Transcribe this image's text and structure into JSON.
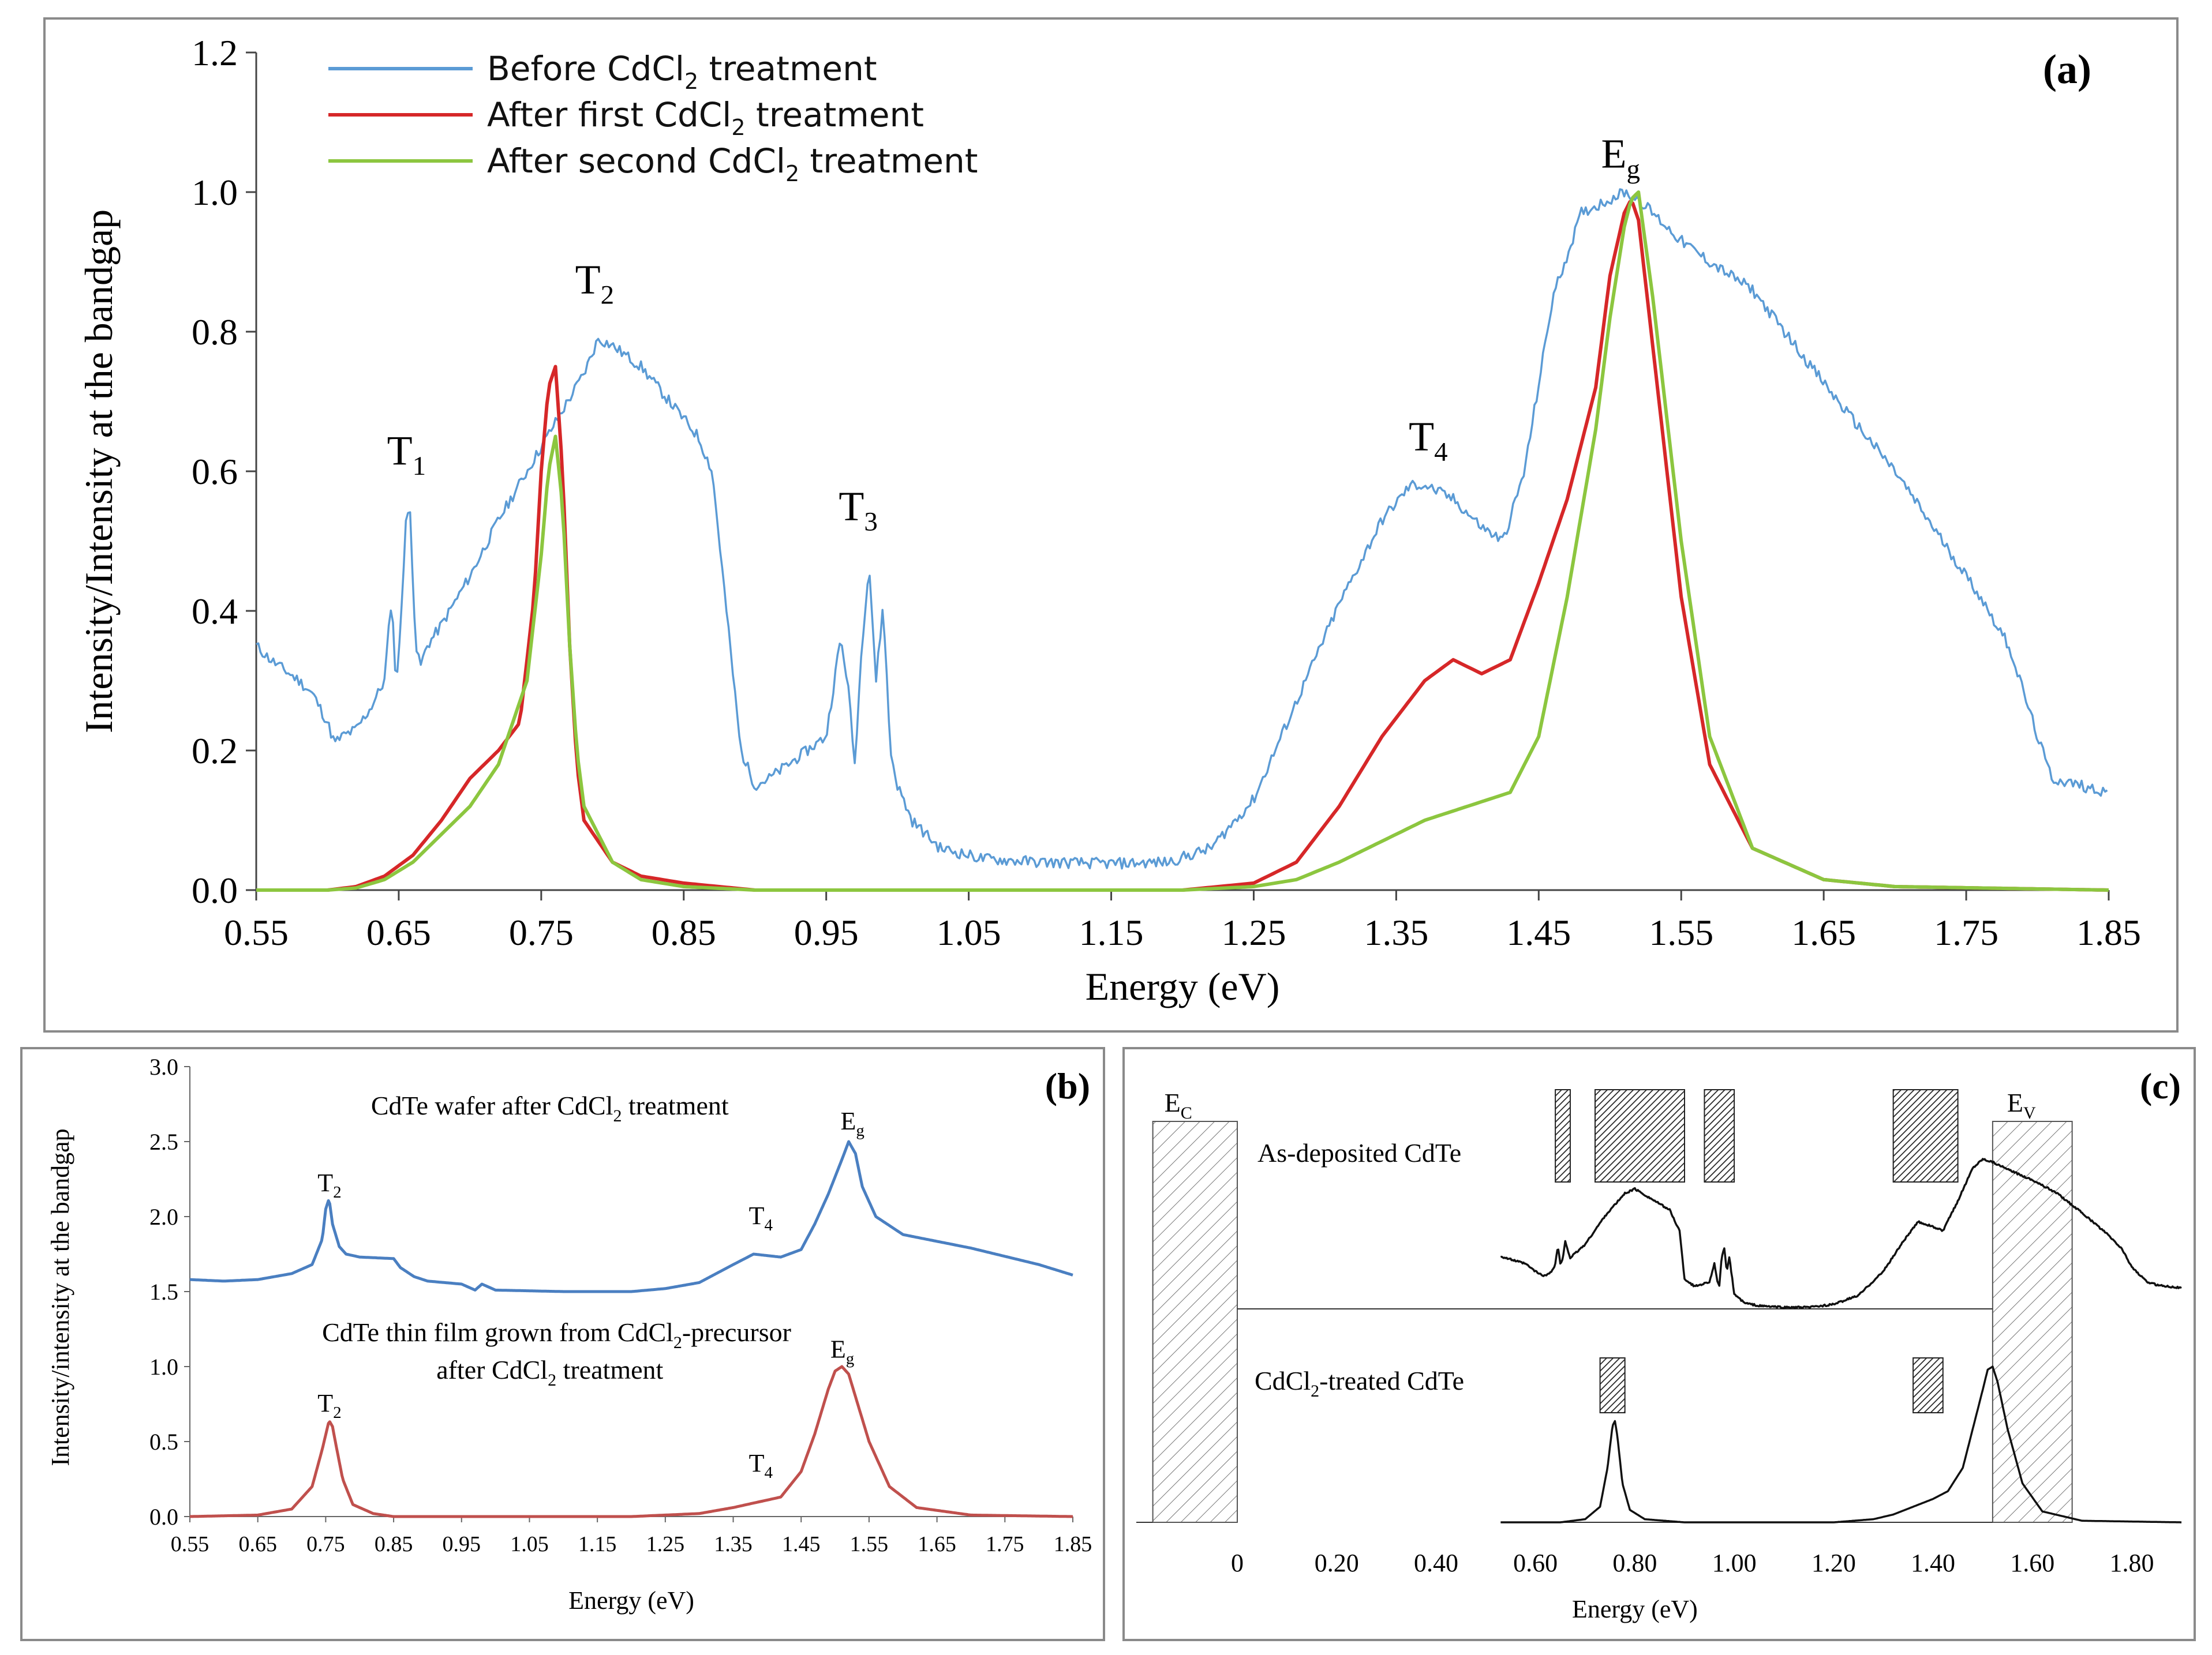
{
  "chart_data": [
    {
      "id": "a",
      "type": "line",
      "panel_label": "(a)",
      "xlabel": "Energy (eV)",
      "ylabel": "Intensity/Intensity at the bandgap",
      "xlim": [
        0.55,
        1.85
      ],
      "ylim": [
        0,
        1.2
      ],
      "xticks": [
        "0.55",
        "0.65",
        "0.75",
        "0.85",
        "0.95",
        "1.05",
        "1.15",
        "1.25",
        "1.35",
        "1.45",
        "1.55",
        "1.65",
        "1.75",
        "1.85"
      ],
      "yticks": [
        "0.0",
        "0.2",
        "0.4",
        "0.6",
        "0.8",
        "1.0",
        "1.2"
      ],
      "legend": [
        {
          "pre": "Before CdCl",
          "sub": "2",
          "post": " treatment",
          "color": "#5b9bd5"
        },
        {
          "pre": "After first CdCl",
          "sub": "2",
          "post": " treatment",
          "color": "#d62728"
        },
        {
          "pre": "After second CdCl",
          "sub": "2",
          "post": " treatment",
          "color": "#8cc63f"
        }
      ],
      "annotations": [
        {
          "main": "T",
          "sub": "1",
          "x": 0.658,
          "y": 0.61
        },
        {
          "main": "T",
          "sub": "2",
          "x": 0.79,
          "y": 0.855
        },
        {
          "main": "T",
          "sub": "3",
          "x": 0.975,
          "y": 0.53
        },
        {
          "main": "T",
          "sub": "4",
          "x": 1.375,
          "y": 0.63
        },
        {
          "main": "E",
          "sub": "g",
          "x": 1.51,
          "y": 1.035
        }
      ],
      "series": [
        {
          "name": "Before CdCl2 treatment",
          "color": "#5b9bd5",
          "noise": 0.008,
          "x": [
            0.55,
            0.56,
            0.58,
            0.59,
            0.6,
            0.605,
            0.61,
            0.62,
            0.63,
            0.64,
            0.645,
            0.648,
            0.65,
            0.655,
            0.658,
            0.662,
            0.665,
            0.67,
            0.68,
            0.7,
            0.72,
            0.74,
            0.76,
            0.78,
            0.79,
            0.8,
            0.82,
            0.84,
            0.86,
            0.87,
            0.88,
            0.89,
            0.9,
            0.91,
            0.93,
            0.95,
            0.96,
            0.965,
            0.97,
            0.975,
            0.98,
            0.985,
            0.99,
            0.995,
            1.0,
            1.01,
            1.03,
            1.06,
            1.1,
            1.15,
            1.19,
            1.22,
            1.25,
            1.28,
            1.31,
            1.34,
            1.36,
            1.37,
            1.39,
            1.41,
            1.425,
            1.44,
            1.46,
            1.48,
            1.5,
            1.51,
            1.52,
            1.53,
            1.55,
            1.57,
            1.6,
            1.63,
            1.66,
            1.7,
            1.73,
            1.76,
            1.78,
            1.8,
            1.81,
            1.83,
            1.85
          ],
          "y": [
            0.35,
            0.33,
            0.3,
            0.28,
            0.24,
            0.21,
            0.22,
            0.23,
            0.26,
            0.3,
            0.42,
            0.3,
            0.33,
            0.53,
            0.54,
            0.35,
            0.32,
            0.35,
            0.38,
            0.45,
            0.53,
            0.6,
            0.67,
            0.74,
            0.79,
            0.78,
            0.75,
            0.7,
            0.65,
            0.6,
            0.4,
            0.2,
            0.15,
            0.16,
            0.19,
            0.22,
            0.36,
            0.3,
            0.18,
            0.35,
            0.47,
            0.3,
            0.41,
            0.2,
            0.15,
            0.1,
            0.06,
            0.045,
            0.04,
            0.038,
            0.04,
            0.06,
            0.13,
            0.27,
            0.41,
            0.53,
            0.58,
            0.58,
            0.56,
            0.52,
            0.5,
            0.6,
            0.85,
            0.97,
            0.99,
            1.0,
            0.99,
            0.97,
            0.93,
            0.9,
            0.86,
            0.78,
            0.7,
            0.6,
            0.51,
            0.42,
            0.35,
            0.22,
            0.16,
            0.15,
            0.14
          ]
        },
        {
          "name": "After first CdCl2 treatment",
          "color": "#d62728",
          "noise": 0,
          "x": [
            0.55,
            0.6,
            0.62,
            0.64,
            0.66,
            0.68,
            0.7,
            0.72,
            0.735,
            0.745,
            0.75,
            0.755,
            0.76,
            0.765,
            0.77,
            0.775,
            0.78,
            0.8,
            0.82,
            0.85,
            0.9,
            1.0,
            1.2,
            1.25,
            1.28,
            1.31,
            1.34,
            1.37,
            1.39,
            1.41,
            1.43,
            1.45,
            1.47,
            1.49,
            1.5,
            1.51,
            1.515,
            1.52,
            1.53,
            1.55,
            1.57,
            1.6,
            1.65,
            1.7,
            1.85
          ],
          "y": [
            0.0,
            0.0,
            0.005,
            0.02,
            0.05,
            0.1,
            0.16,
            0.2,
            0.24,
            0.42,
            0.6,
            0.72,
            0.75,
            0.6,
            0.35,
            0.18,
            0.1,
            0.04,
            0.02,
            0.01,
            0.0,
            0.0,
            0.0,
            0.01,
            0.04,
            0.12,
            0.22,
            0.3,
            0.33,
            0.31,
            0.33,
            0.44,
            0.56,
            0.72,
            0.88,
            0.97,
            0.99,
            0.96,
            0.78,
            0.42,
            0.18,
            0.06,
            0.015,
            0.005,
            0.0
          ]
        },
        {
          "name": "After second CdCl2 treatment",
          "color": "#8cc63f",
          "noise": 0,
          "x": [
            0.55,
            0.6,
            0.62,
            0.64,
            0.66,
            0.68,
            0.7,
            0.72,
            0.74,
            0.75,
            0.755,
            0.76,
            0.765,
            0.77,
            0.775,
            0.78,
            0.8,
            0.82,
            0.85,
            0.9,
            1.0,
            1.2,
            1.25,
            1.28,
            1.31,
            1.34,
            1.37,
            1.4,
            1.43,
            1.45,
            1.47,
            1.49,
            1.5,
            1.51,
            1.515,
            1.52,
            1.53,
            1.55,
            1.57,
            1.6,
            1.65,
            1.7,
            1.85
          ],
          "y": [
            0.0,
            0.0,
            0.003,
            0.015,
            0.04,
            0.08,
            0.12,
            0.18,
            0.3,
            0.48,
            0.6,
            0.65,
            0.55,
            0.35,
            0.2,
            0.12,
            0.04,
            0.015,
            0.005,
            0.0,
            0.0,
            0.0,
            0.005,
            0.015,
            0.04,
            0.07,
            0.1,
            0.12,
            0.14,
            0.22,
            0.42,
            0.66,
            0.82,
            0.95,
            0.99,
            1.0,
            0.85,
            0.5,
            0.22,
            0.06,
            0.015,
            0.005,
            0.0
          ]
        }
      ]
    },
    {
      "id": "b",
      "type": "line",
      "panel_label": "(b)",
      "xlabel": "Energy (eV)",
      "ylabel": "Intensity/intensity at the bandgap",
      "xlim": [
        0.55,
        1.85
      ],
      "ylim": [
        0,
        3.0
      ],
      "xticks": [
        "0.55",
        "0.65",
        "0.75",
        "0.85",
        "0.95",
        "1.05",
        "1.15",
        "1.25",
        "1.35",
        "1.45",
        "1.55",
        "1.65",
        "1.75",
        "1.85"
      ],
      "yticks": [
        "0.0",
        "0.5",
        "1.0",
        "1.5",
        "2.0",
        "2.5",
        "3.0"
      ],
      "texts": [
        {
          "id": "wafer-caption",
          "pre": "CdTe wafer after CdCl",
          "sub": "2",
          "post": " treatment",
          "x": 1.08,
          "y": 2.68
        },
        {
          "id": "film-caption-1",
          "pre": "CdTe thin film grown from CdCl",
          "sub": "2",
          "post": "-precursor",
          "x": 1.09,
          "y": 1.17
        },
        {
          "id": "film-caption-2",
          "pre": "after CdCl",
          "sub": "2",
          "post": " treatment",
          "x": 1.08,
          "y": 0.92
        }
      ],
      "annotations": [
        {
          "main": "T",
          "sub": "2",
          "x": 0.755,
          "y": 2.17
        },
        {
          "main": "T",
          "sub": "4",
          "x": 1.39,
          "y": 1.95
        },
        {
          "main": "E",
          "sub": "g",
          "x": 1.525,
          "y": 2.58
        },
        {
          "main": "T",
          "sub": "2",
          "x": 0.755,
          "y": 0.7
        },
        {
          "main": "T",
          "sub": "4",
          "x": 1.39,
          "y": 0.3
        },
        {
          "main": "E",
          "sub": "g",
          "x": 1.51,
          "y": 1.06
        }
      ],
      "series": [
        {
          "name": "CdTe wafer after CdCl2 treatment",
          "color": "#4a7fc1",
          "noise": 0,
          "x": [
            0.55,
            0.6,
            0.65,
            0.7,
            0.73,
            0.745,
            0.75,
            0.755,
            0.76,
            0.77,
            0.78,
            0.8,
            0.85,
            0.86,
            0.88,
            0.9,
            0.95,
            0.97,
            0.98,
            1.0,
            1.1,
            1.2,
            1.25,
            1.3,
            1.35,
            1.38,
            1.42,
            1.45,
            1.47,
            1.49,
            1.51,
            1.52,
            1.53,
            1.54,
            1.56,
            1.6,
            1.7,
            1.8,
            1.85
          ],
          "y": [
            1.58,
            1.57,
            1.58,
            1.62,
            1.68,
            1.85,
            2.05,
            2.12,
            1.95,
            1.8,
            1.75,
            1.73,
            1.72,
            1.66,
            1.6,
            1.57,
            1.55,
            1.51,
            1.55,
            1.51,
            1.5,
            1.5,
            1.52,
            1.56,
            1.68,
            1.75,
            1.73,
            1.78,
            1.95,
            2.15,
            2.38,
            2.5,
            2.42,
            2.2,
            2.0,
            1.88,
            1.79,
            1.68,
            1.61
          ]
        },
        {
          "name": "CdTe thin film grown from CdCl2-precursor after CdCl2 treatment",
          "color": "#c0504d",
          "noise": 0,
          "x": [
            0.55,
            0.65,
            0.7,
            0.73,
            0.745,
            0.755,
            0.76,
            0.765,
            0.775,
            0.79,
            0.82,
            0.85,
            1.0,
            1.2,
            1.3,
            1.35,
            1.39,
            1.42,
            1.45,
            1.47,
            1.49,
            1.5,
            1.51,
            1.52,
            1.53,
            1.55,
            1.58,
            1.62,
            1.7,
            1.85
          ],
          "y": [
            0.0,
            0.01,
            0.05,
            0.2,
            0.45,
            0.64,
            0.6,
            0.48,
            0.25,
            0.08,
            0.02,
            0.0,
            0.0,
            0.0,
            0.02,
            0.06,
            0.1,
            0.13,
            0.3,
            0.55,
            0.85,
            0.97,
            1.0,
            0.95,
            0.8,
            0.5,
            0.2,
            0.06,
            0.01,
            0.0
          ]
        }
      ]
    },
    {
      "id": "c",
      "type": "line",
      "panel_label": "(c)",
      "xlabel": "Energy (eV)",
      "xticks": [
        "0",
        "0.20",
        "0.40",
        "0.60",
        "0.80",
        "1.00",
        "1.20",
        "1.40",
        "1.60",
        "1.80"
      ],
      "labels": {
        "ec_main": "E",
        "ec_sub": "C",
        "ev_main": "E",
        "ev_sub": "V",
        "top": "As-deposited CdTe",
        "bottom_pre": "CdCl",
        "bottom_sub": "2",
        "bottom_post": "-treated CdTe"
      },
      "bands_top": [
        [
          0.64,
          0.67
        ],
        [
          0.72,
          0.9
        ],
        [
          0.94,
          1.0
        ],
        [
          1.32,
          1.45
        ]
      ],
      "bands_bottom": [
        [
          0.73,
          0.78
        ],
        [
          1.36,
          1.42
        ]
      ],
      "ec_band": [
        -0.17,
        0.0
      ],
      "ev_band": [
        1.52,
        1.68
      ],
      "series": [
        {
          "name": "As-deposited CdTe",
          "color": "#111111",
          "noise": 0.006,
          "panel": "top",
          "x": [
            0.53,
            0.58,
            0.6,
            0.61,
            0.62,
            0.635,
            0.64,
            0.645,
            0.65,
            0.655,
            0.66,
            0.67,
            0.7,
            0.74,
            0.78,
            0.8,
            0.84,
            0.87,
            0.89,
            0.9,
            0.92,
            0.95,
            0.96,
            0.965,
            0.97,
            0.975,
            0.98,
            0.985,
            0.99,
            1.0,
            1.02,
            1.05,
            1.1,
            1.15,
            1.2,
            1.25,
            1.3,
            1.34,
            1.37,
            1.39,
            1.42,
            1.45,
            1.48,
            1.5,
            1.52,
            1.55,
            1.6,
            1.65,
            1.7,
            1.75,
            1.78,
            1.8,
            1.83,
            1.85,
            1.9
          ],
          "y": [
            0.35,
            0.3,
            0.25,
            0.23,
            0.22,
            0.26,
            0.3,
            0.42,
            0.3,
            0.33,
            0.45,
            0.34,
            0.43,
            0.62,
            0.77,
            0.8,
            0.72,
            0.66,
            0.52,
            0.2,
            0.15,
            0.18,
            0.3,
            0.2,
            0.15,
            0.35,
            0.4,
            0.25,
            0.35,
            0.1,
            0.04,
            0.02,
            0.01,
            0.01,
            0.03,
            0.09,
            0.25,
            0.45,
            0.58,
            0.56,
            0.52,
            0.72,
            0.94,
            1.0,
            0.98,
            0.93,
            0.86,
            0.77,
            0.64,
            0.5,
            0.4,
            0.28,
            0.18,
            0.16,
            0.14
          ]
        },
        {
          "name": "CdCl2-treated CdTe",
          "color": "#111111",
          "noise": 0,
          "panel": "bottom",
          "x": [
            0.53,
            0.65,
            0.7,
            0.73,
            0.745,
            0.755,
            0.76,
            0.765,
            0.775,
            0.79,
            0.82,
            0.9,
            1.0,
            1.2,
            1.28,
            1.32,
            1.36,
            1.4,
            1.43,
            1.46,
            1.48,
            1.5,
            1.51,
            1.52,
            1.53,
            1.55,
            1.58,
            1.62,
            1.7,
            1.9
          ],
          "y": [
            0.0,
            0.0,
            0.02,
            0.1,
            0.35,
            0.62,
            0.65,
            0.55,
            0.25,
            0.08,
            0.02,
            0.0,
            0.0,
            0.0,
            0.02,
            0.05,
            0.1,
            0.15,
            0.2,
            0.35,
            0.6,
            0.85,
            0.98,
            1.0,
            0.9,
            0.6,
            0.25,
            0.07,
            0.01,
            0.0
          ]
        }
      ]
    }
  ]
}
